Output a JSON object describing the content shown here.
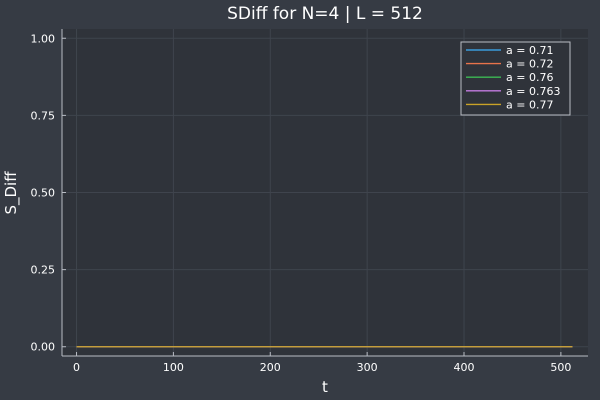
{
  "chart_data": {
    "type": "line",
    "title": "SDiff for N=4 | L = 512",
    "xlabel": "t",
    "ylabel": "S_Diff",
    "xlim": [
      -15,
      528
    ],
    "ylim": [
      -0.03,
      1.03
    ],
    "xticks": [
      0,
      100,
      200,
      300,
      400,
      500
    ],
    "xtick_labels": [
      "0",
      "100",
      "200",
      "300",
      "400",
      "500"
    ],
    "yticks": [
      0,
      0.25,
      0.5,
      0.75,
      1
    ],
    "ytick_labels": [
      "0.00",
      "0.25",
      "0.50",
      "0.75",
      "1.00"
    ],
    "grid": true,
    "legend_position": "top-right",
    "x": [
      0,
      512
    ],
    "series": [
      {
        "name": "a = 0.71",
        "color": "#3a9bd9",
        "values": [
          0,
          0
        ]
      },
      {
        "name": "a = 0.72",
        "color": "#e8734a",
        "values": [
          0,
          0
        ]
      },
      {
        "name": "a = 0.76",
        "color": "#3cba54",
        "values": [
          0,
          0
        ]
      },
      {
        "name": "a = 0.763",
        "color": "#c37be0",
        "values": [
          0,
          0
        ]
      },
      {
        "name": "a = 0.77",
        "color": "#c9a227",
        "values": [
          0,
          0
        ]
      }
    ]
  },
  "colors": {
    "background": "#363b44",
    "plot_area": "#2f333a",
    "grid": "#3f444d",
    "axis": "#b8bcc4",
    "text": "#ffffff"
  }
}
